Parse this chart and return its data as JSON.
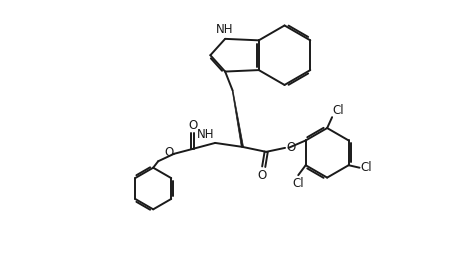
{
  "bg_color": "#ffffff",
  "line_color": "#1a1a1a",
  "line_width": 1.4,
  "font_size": 8.5,
  "fig_width": 4.65,
  "fig_height": 2.69,
  "dpi": 100,
  "xlim": [
    0,
    93
  ],
  "ylim": [
    0,
    54
  ]
}
